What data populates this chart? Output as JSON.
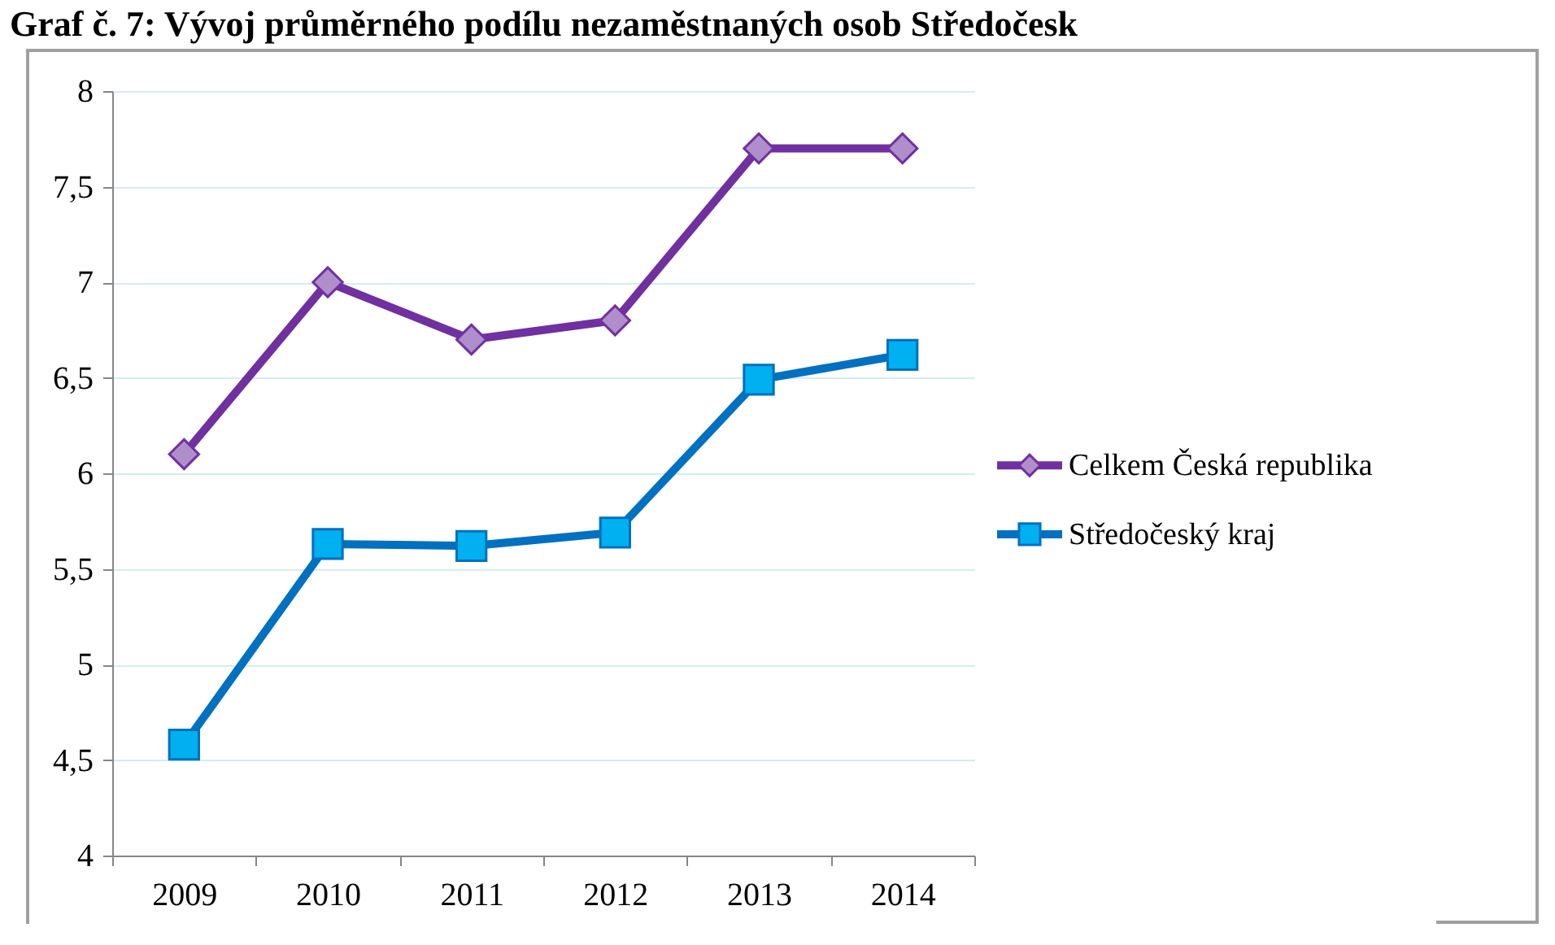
{
  "chart_data": {
    "type": "line",
    "title": "Graf č. 7: Vývoj průměrného podílu nezaměstnaných osob Středočesk",
    "categories": [
      "2009",
      "2010",
      "2011",
      "2012",
      "2013",
      "2014"
    ],
    "series": [
      {
        "name": "Celkem Česká republika",
        "color": "#7030a0",
        "marker": "diamond",
        "values": [
          6.1,
          7.0,
          6.7,
          6.8,
          7.7,
          7.7
        ]
      },
      {
        "name": "Středočeský kraj",
        "color": "#0070c0",
        "marker": "square",
        "values": [
          4.58,
          5.63,
          5.62,
          5.69,
          6.49,
          6.62
        ]
      }
    ],
    "ylim": [
      4,
      8
    ],
    "yticks": [
      4,
      {
        "value": 4.5,
        "label": "4,5"
      },
      5,
      {
        "value": 5.5,
        "label": "5,5"
      },
      6,
      {
        "value": 6.5,
        "label": "6,5"
      },
      7,
      {
        "value": 7.5,
        "label": "7,5"
      },
      8
    ],
    "grid": "y",
    "legend": "right",
    "line_style": "solid"
  }
}
